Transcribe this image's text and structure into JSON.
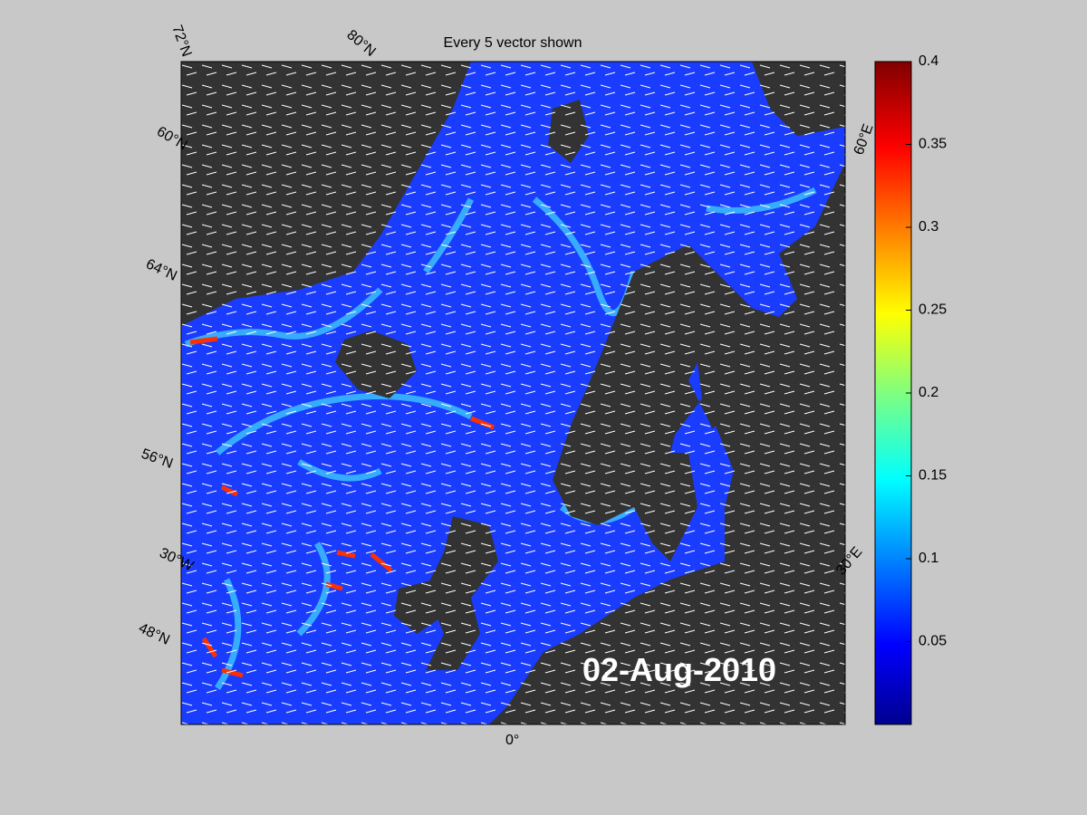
{
  "title": "Every 5 vector shown",
  "date": "02-Aug-2010",
  "grid_labels": [
    "72°N",
    "80°N",
    "60°N",
    "64°N",
    "56°N",
    "30°W",
    "48°N",
    "0°",
    "30°E",
    "60°E"
  ],
  "colorbar": {
    "lim": [
      0,
      0.4
    ],
    "ticks": [
      0.05,
      0.1,
      0.15,
      0.2,
      0.25,
      0.3,
      0.35,
      0.4
    ]
  }
}
